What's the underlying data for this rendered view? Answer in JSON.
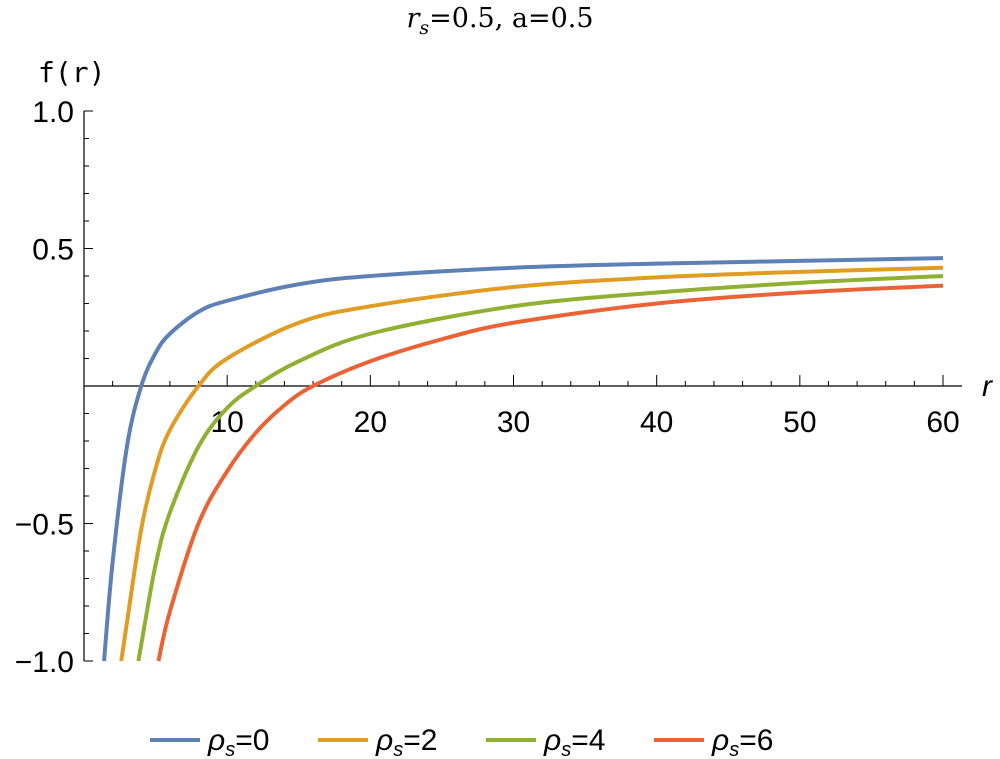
{
  "chart_data": {
    "type": "line",
    "title": {
      "var": "r",
      "sub": "s",
      "rest": "=0.5, a=0.5"
    },
    "xlabel": "r",
    "ylabel": "f(r)",
    "xlim": [
      0,
      60
    ],
    "ylim": [
      -1,
      1
    ],
    "x_ticks": [
      10,
      20,
      30,
      40,
      50,
      60
    ],
    "y_ticks": [
      1.0,
      0.5,
      -0.5,
      -1.0
    ],
    "y_tick_labels": [
      "1.0",
      "0.5",
      "−0.5",
      "−1.0"
    ],
    "grid": false,
    "legend_position": "bottom",
    "series": [
      {
        "name": "ρs=0",
        "label_sym": "ρ",
        "label_sub": "s",
        "label_val": "=0",
        "color": "#5e81b5",
        "x": [
          1.4,
          2,
          3,
          4,
          5,
          6,
          8,
          10,
          15,
          20,
          30,
          40,
          50,
          60
        ],
        "y": [
          -1.0,
          -0.64,
          -0.22,
          0.0,
          0.12,
          0.19,
          0.27,
          0.31,
          0.37,
          0.4,
          0.43,
          0.445,
          0.455,
          0.465
        ]
      },
      {
        "name": "ρs=2",
        "label_sym": "ρ",
        "label_sub": "s",
        "label_val": "=2",
        "color": "#e19c24",
        "x": [
          2.6,
          3,
          4,
          5,
          6,
          8,
          10,
          15,
          20,
          30,
          40,
          50,
          60
        ],
        "y": [
          -1.0,
          -0.86,
          -0.52,
          -0.3,
          -0.16,
          0.0,
          0.1,
          0.23,
          0.29,
          0.36,
          0.395,
          0.415,
          0.43
        ]
      },
      {
        "name": "ρs=4",
        "label_sym": "ρ",
        "label_sub": "s",
        "label_val": "=4",
        "color": "#8fb032",
        "x": [
          3.8,
          4,
          5,
          6,
          8,
          10,
          12,
          15,
          20,
          30,
          40,
          50,
          60
        ],
        "y": [
          -1.0,
          -0.94,
          -0.65,
          -0.46,
          -0.22,
          -0.08,
          0.0,
          0.09,
          0.19,
          0.29,
          0.34,
          0.375,
          0.4
        ]
      },
      {
        "name": "ρs=6",
        "label_sym": "ρ",
        "label_sub": "s",
        "label_val": "=6",
        "color": "#eb6235",
        "x": [
          5.2,
          6,
          8,
          10,
          12,
          14,
          16,
          20,
          25,
          30,
          40,
          50,
          60
        ],
        "y": [
          -1.0,
          -0.82,
          -0.5,
          -0.31,
          -0.17,
          -0.07,
          0.0,
          0.09,
          0.17,
          0.23,
          0.3,
          0.34,
          0.365
        ]
      }
    ]
  }
}
